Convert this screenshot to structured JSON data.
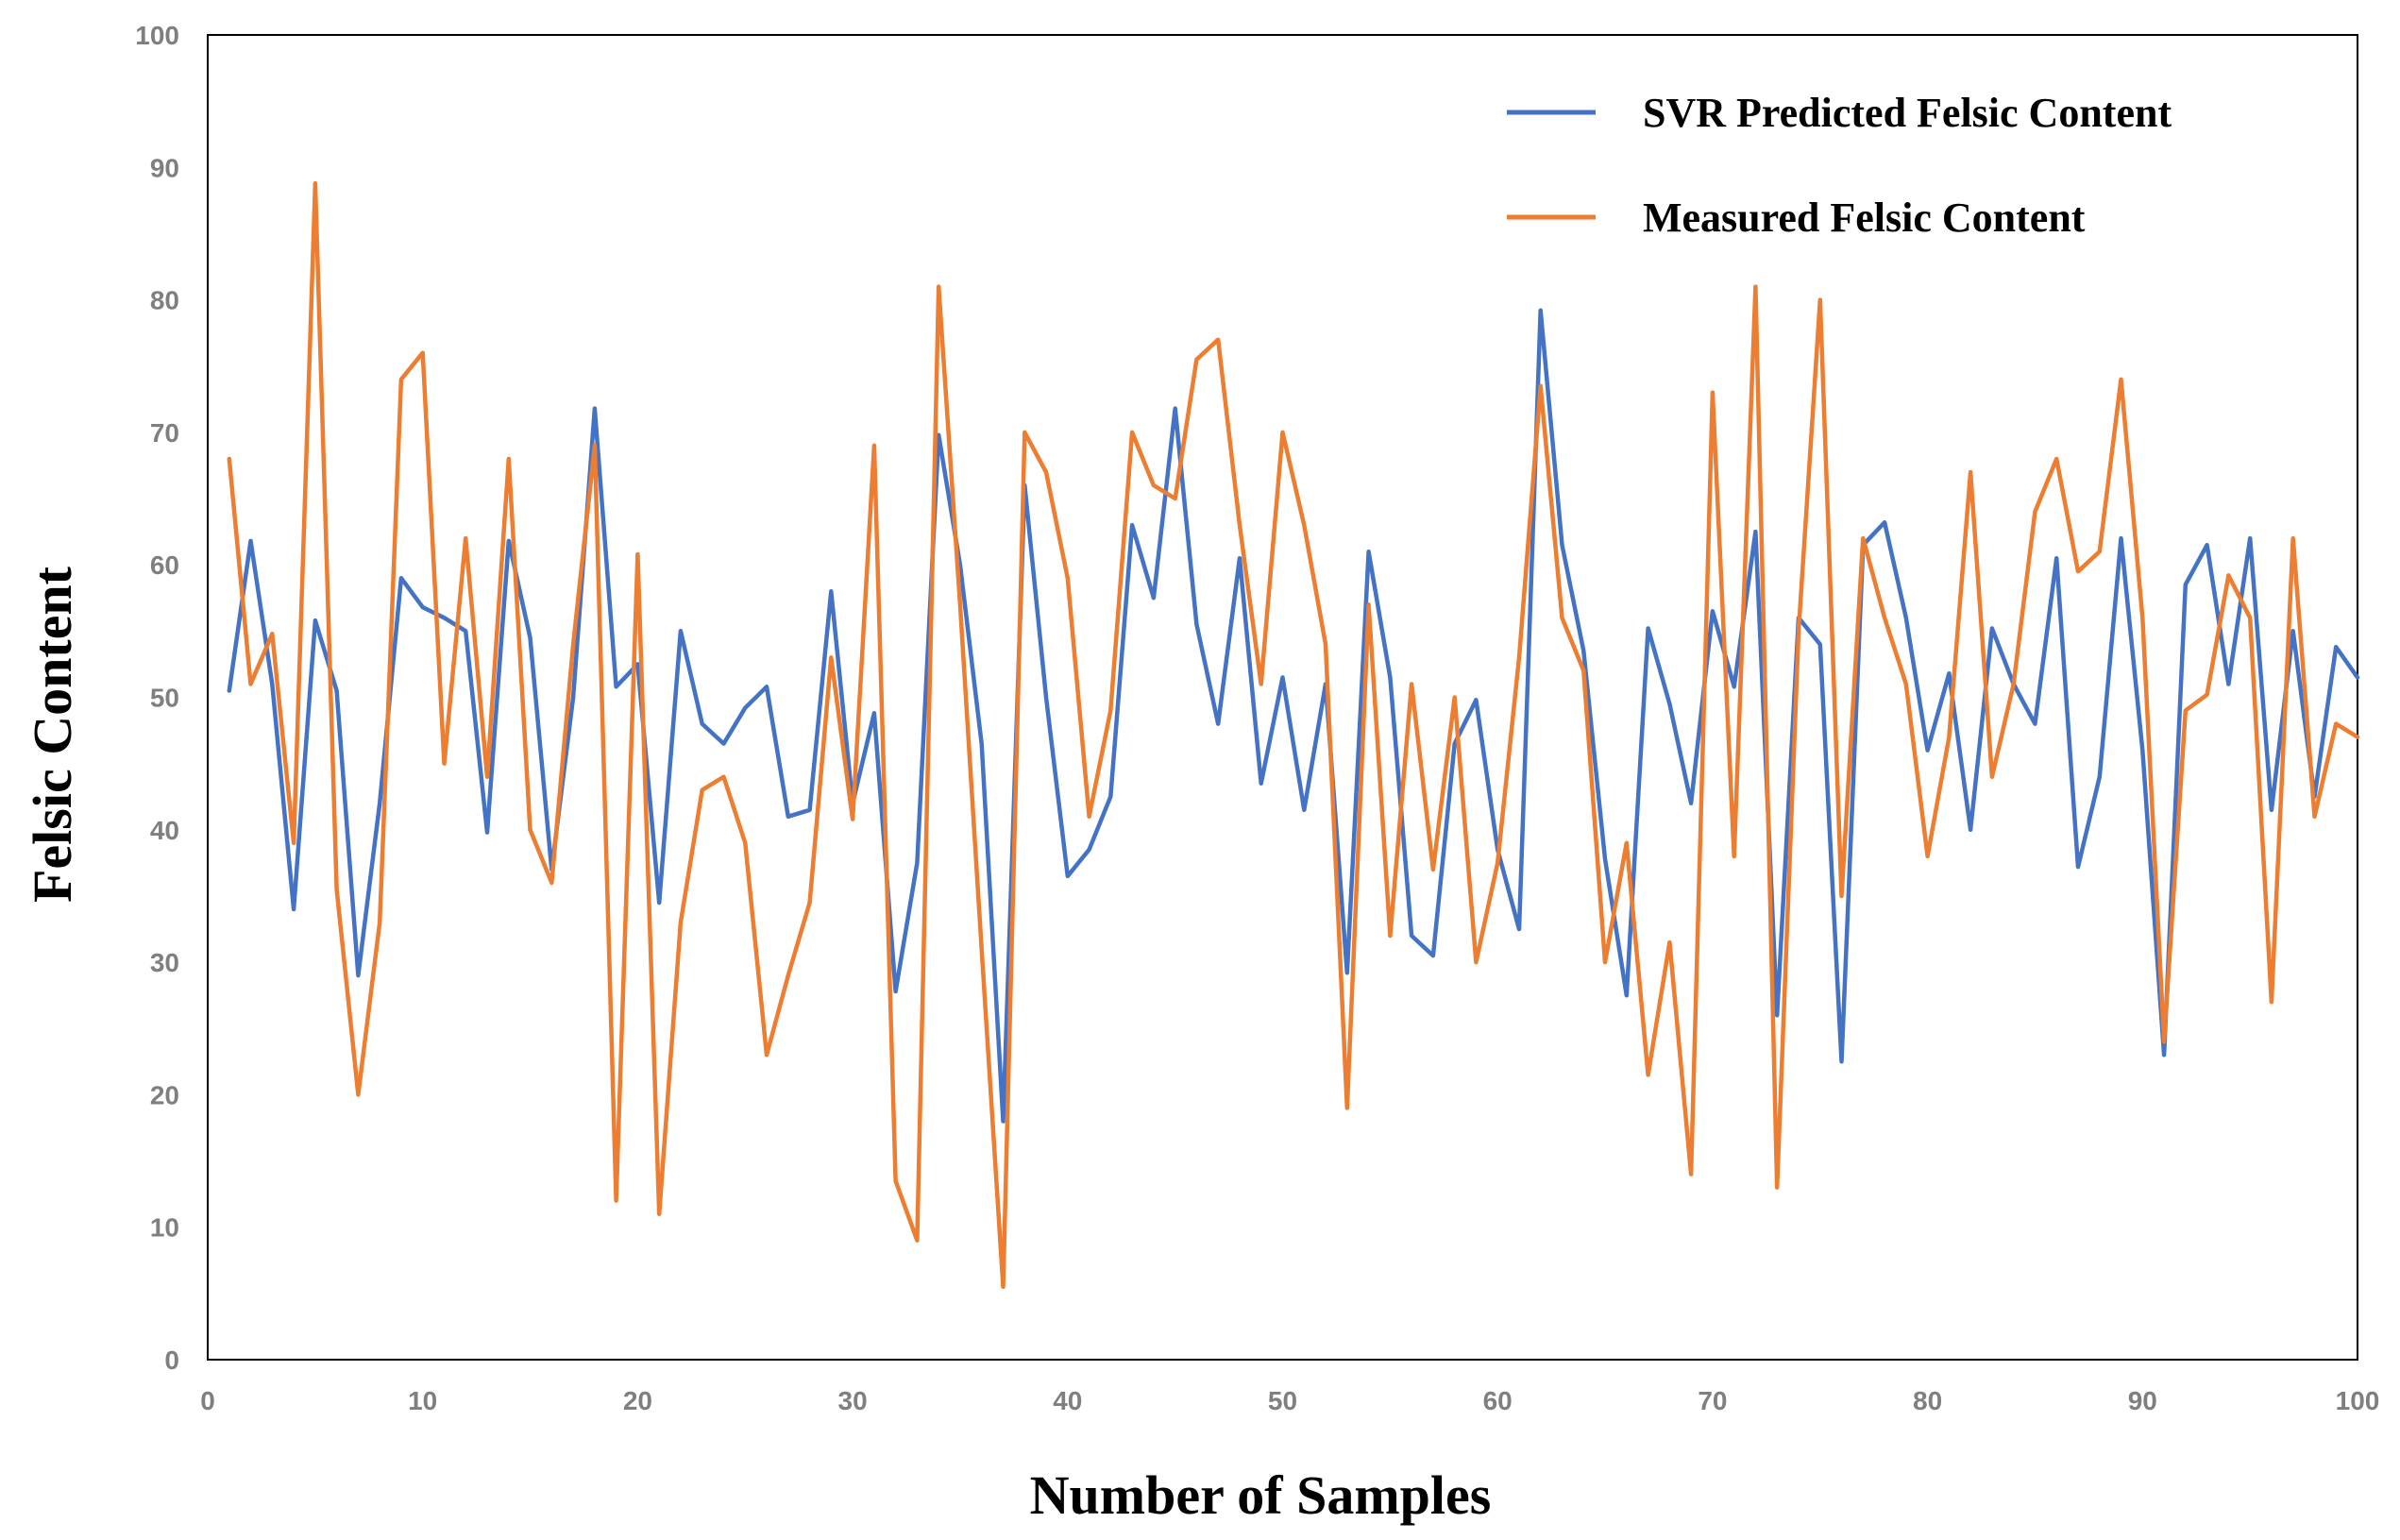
{
  "chart_data": {
    "type": "line",
    "title": "",
    "xlabel": "Number of Samples",
    "ylabel": "Felsic Content",
    "xlim": [
      0,
      100
    ],
    "ylim": [
      0,
      100
    ],
    "xticks": [
      0,
      10,
      20,
      30,
      40,
      50,
      60,
      70,
      80,
      90,
      100
    ],
    "yticks": [
      0,
      10,
      20,
      30,
      40,
      50,
      60,
      70,
      80,
      90,
      100
    ],
    "grid": false,
    "legend_position": "top-right",
    "x": [
      1,
      2,
      3,
      4,
      5,
      6,
      7,
      8,
      9,
      10,
      11,
      12,
      13,
      14,
      15,
      16,
      17,
      18,
      19,
      20,
      21,
      22,
      23,
      24,
      25,
      26,
      27,
      28,
      29,
      30,
      31,
      32,
      33,
      34,
      35,
      36,
      37,
      38,
      39,
      40,
      41,
      42,
      43,
      44,
      45,
      46,
      47,
      48,
      49,
      50,
      51,
      52,
      53,
      54,
      55,
      56,
      57,
      58,
      59,
      60,
      61,
      62,
      63,
      64,
      65,
      66,
      67,
      68,
      69,
      70,
      71,
      72,
      73,
      74,
      75,
      76,
      77,
      78,
      79,
      80,
      81,
      82,
      83,
      84,
      85,
      86,
      87,
      88,
      89,
      90,
      91,
      92,
      93,
      94,
      95,
      96,
      97,
      98,
      99,
      100
    ],
    "series": [
      {
        "name": "SVR Predicted Felsic Content",
        "color": "#4472C4",
        "values": [
          50.5,
          61.8,
          51.0,
          34.0,
          55.8,
          50.5,
          29.0,
          42.0,
          59.0,
          56.8,
          56.0,
          55.0,
          39.8,
          61.8,
          54.5,
          37.0,
          50.0,
          71.8,
          50.8,
          52.5,
          34.5,
          55.0,
          48.0,
          46.5,
          49.2,
          50.8,
          41.0,
          41.5,
          58.0,
          42.0,
          48.8,
          27.8,
          37.5,
          69.8,
          60.0,
          46.5,
          18.0,
          66.0,
          50.0,
          36.5,
          38.5,
          42.5,
          63.0,
          57.5,
          71.8,
          55.5,
          48.0,
          60.5,
          43.5,
          51.5,
          41.5,
          51.0,
          29.2,
          61.0,
          51.5,
          32.0,
          30.5,
          46.5,
          49.8,
          38.5,
          32.5,
          79.2,
          61.5,
          53.5,
          37.8,
          27.5,
          55.2,
          49.5,
          42.0,
          56.5,
          50.8,
          62.5,
          26.0,
          56.0,
          54.0,
          22.5,
          61.5,
          63.2,
          56.0,
          46.0,
          51.8,
          40.0,
          55.2,
          51.0,
          48.0,
          60.5,
          37.2,
          44.0,
          62.0,
          46.0,
          23.0,
          58.5,
          61.5,
          51.0,
          62.0,
          41.5,
          55.0,
          42.5,
          53.8,
          51.5
        ]
      },
      {
        "name": "Measured Felsic Content",
        "color": "#ED7D31",
        "values": [
          68.0,
          51.0,
          54.8,
          39.0,
          88.8,
          35.5,
          20.0,
          33.0,
          74.0,
          76.0,
          45.0,
          62.0,
          44.0,
          68.0,
          40.0,
          36.0,
          54.0,
          69.0,
          12.0,
          60.8,
          11.0,
          33.0,
          43.0,
          44.0,
          39.0,
          23.0,
          29.0,
          34.5,
          53.0,
          40.8,
          69.0,
          13.5,
          9.0,
          81.0,
          57.0,
          31.0,
          5.5,
          70.0,
          67.0,
          59.0,
          41.0,
          49.0,
          70.0,
          66.0,
          65.0,
          75.5,
          77.0,
          63.0,
          51.0,
          70.0,
          63.0,
          54.0,
          19.0,
          57.0,
          32.0,
          51.0,
          37.0,
          50.0,
          30.0,
          37.5,
          53.0,
          73.5,
          56.0,
          52.0,
          30.0,
          39.0,
          21.5,
          31.5,
          14.0,
          73.0,
          38.0,
          81.0,
          13.0,
          55.0,
          80.0,
          35.0,
          62.0,
          56.0,
          51.0,
          38.0,
          47.0,
          67.0,
          44.0,
          51.0,
          64.0,
          68.0,
          59.5,
          61.0,
          74.0,
          56.0,
          24.0,
          49.0,
          50.2,
          59.2,
          56.0,
          27.0,
          62.0,
          41.0,
          48.0,
          47.0
        ]
      }
    ]
  }
}
